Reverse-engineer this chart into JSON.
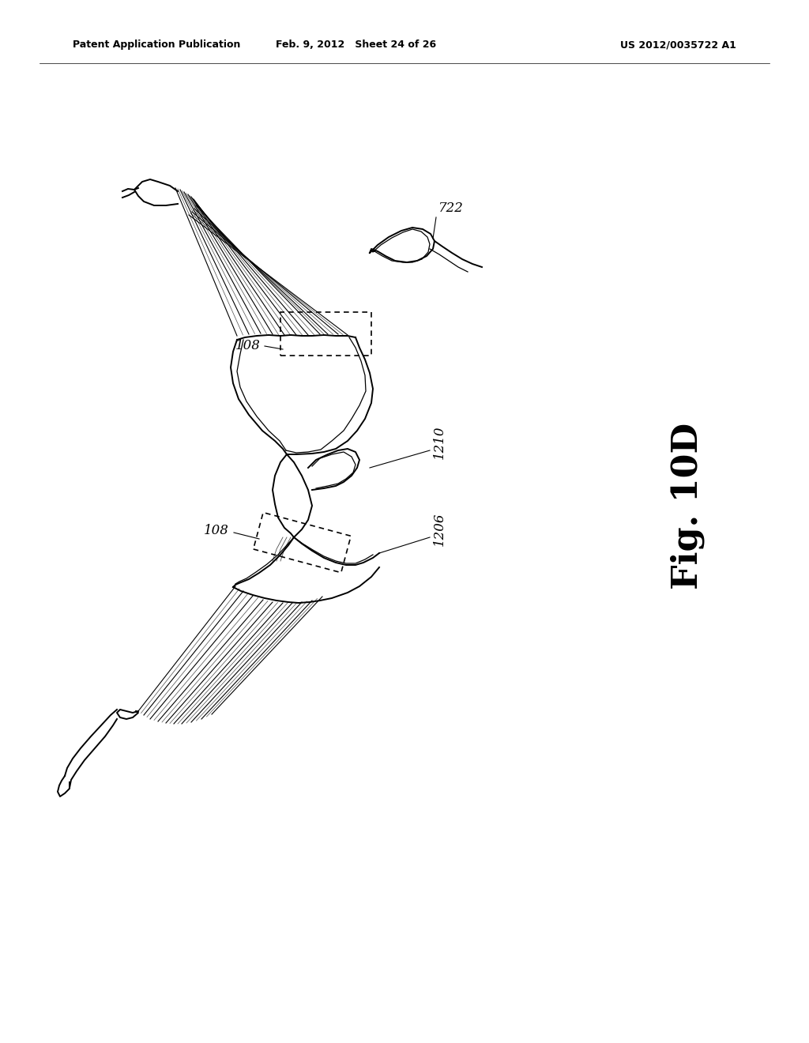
{
  "bg_color": "#ffffff",
  "header_left": "Patent Application Publication",
  "header_center": "Feb. 9, 2012   Sheet 24 of 26",
  "header_right": "US 2012/0035722 A1",
  "fig_label": "Fig. 10D"
}
